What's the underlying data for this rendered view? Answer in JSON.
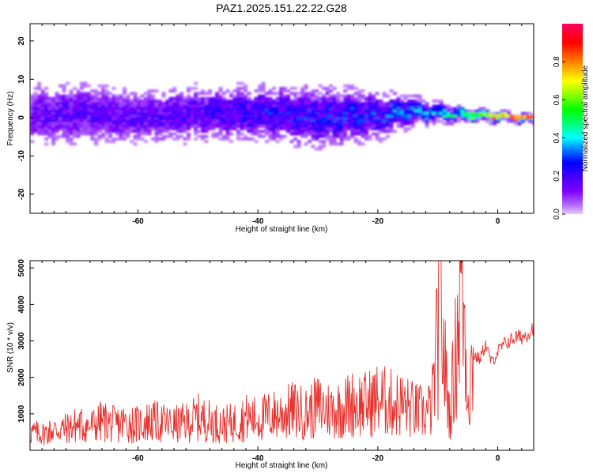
{
  "chart_data": [
    {
      "type": "heatmap",
      "title": "PAZ1.2025.151.22.22.G28",
      "xlabel": "Height of straight line (km)",
      "ylabel": "Frequency (Hz)",
      "xlim": [
        -78,
        6
      ],
      "ylim": [
        -25,
        24.5
      ],
      "xticks": [
        -60,
        -40,
        -20,
        0
      ],
      "yticks": [
        20,
        10,
        0,
        -10,
        -20
      ],
      "colorbar": {
        "label": "Normalized spectral amplitude",
        "range": [
          0,
          1
        ],
        "ticks": [
          0.0,
          0.2,
          0.4,
          0.6,
          0.8
        ],
        "colormap": [
          "#e6ccff",
          "#b266ff",
          "#8000ff",
          "#4000ff",
          "#0000ff",
          "#0080ff",
          "#00ffff",
          "#00ff80",
          "#00ff00",
          "#80ff00",
          "#ffff00",
          "#ff8000",
          "#ff0000",
          "#ff0060"
        ]
      },
      "ridge": {
        "x": [
          -78,
          -70,
          -60,
          -50,
          -40,
          -30,
          -20,
          -15,
          -10,
          -5,
          0,
          6
        ],
        "frequency": [
          1.0,
          1.5,
          0.5,
          1.5,
          1.5,
          0.5,
          1.0,
          2.0,
          1.5,
          1.0,
          0.5,
          0.0
        ],
        "amplitude": [
          0.2,
          0.22,
          0.22,
          0.25,
          0.28,
          0.3,
          0.32,
          0.38,
          0.45,
          0.6,
          0.85,
          0.95
        ],
        "spread_hz": [
          8,
          8,
          7,
          7,
          7,
          8,
          6,
          4,
          2.5,
          1.5,
          1.2,
          1.0
        ]
      }
    },
    {
      "type": "line",
      "xlabel": "Height of straight line (km)",
      "ylabel": "SNR (10 * v/v)",
      "xlim": [
        -78,
        6
      ],
      "ylim": [
        0,
        5200
      ],
      "xticks": [
        -60,
        -40,
        -20,
        0
      ],
      "yticks": [
        1000,
        2000,
        3000,
        4000,
        5000
      ],
      "color": "#e8302c",
      "x": [
        -78,
        -76,
        -74,
        -72,
        -70,
        -68,
        -66,
        -64,
        -62,
        -60,
        -58,
        -56,
        -54,
        -52,
        -50,
        -48,
        -46,
        -44,
        -42,
        -40,
        -38,
        -36,
        -34,
        -32,
        -30,
        -28,
        -26,
        -24,
        -22,
        -20,
        -18,
        -16,
        -14,
        -12,
        -11,
        -10,
        -9.5,
        -9,
        -8,
        -7,
        -6.5,
        -6,
        -5.5,
        -5,
        -4.5,
        -4,
        -3,
        -2,
        -1,
        0,
        1,
        2,
        3,
        4,
        5,
        6
      ],
      "y": [
        500,
        450,
        550,
        600,
        700,
        650,
        800,
        700,
        750,
        700,
        800,
        750,
        700,
        750,
        900,
        800,
        700,
        750,
        900,
        850,
        950,
        1000,
        1100,
        1000,
        1200,
        1100,
        1150,
        1300,
        1250,
        1400,
        1300,
        1250,
        1100,
        1000,
        1200,
        3000,
        4300,
        2500,
        1000,
        2600,
        4000,
        5000,
        3400,
        1600,
        2000,
        2600,
        2500,
        2900,
        2400,
        2700,
        2900,
        3000,
        3100,
        3100,
        3200,
        3400
      ]
    }
  ]
}
